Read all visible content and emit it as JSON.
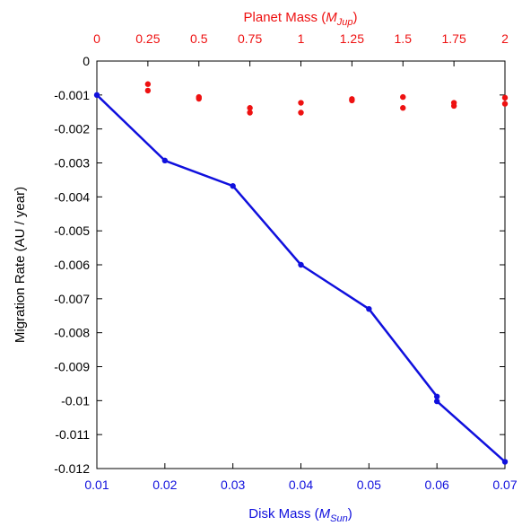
{
  "chart_data": {
    "type": "scatter",
    "bottom_axis": {
      "label_text": "Disk Mass (",
      "label_symbol": "M",
      "label_sub": "Sun",
      "label_close": ")",
      "range": [
        0.01,
        0.07
      ],
      "ticks": [
        "0.01",
        "0.02",
        "0.03",
        "0.04",
        "0.05",
        "0.06",
        "0.07"
      ],
      "color": "#1010dd"
    },
    "top_axis": {
      "label_text": "Planet Mass (",
      "label_symbol": "M",
      "label_sub": "Jup",
      "label_close": ")",
      "range": [
        0,
        2
      ],
      "ticks": [
        "0",
        "0.25",
        "0.5",
        "0.75",
        "1",
        "1.25",
        "1.5",
        "1.75",
        "2"
      ],
      "color": "#ee1111"
    },
    "left_axis": {
      "label": "Migration Rate (AU / year)",
      "range": [
        -0.012,
        0
      ],
      "ticks": [
        "0",
        "-0.001",
        "-0.002",
        "-0.003",
        "-0.004",
        "-0.005",
        "-0.006",
        "-0.007",
        "-0.008",
        "-0.009",
        "-0.01",
        "-0.011",
        "-0.012"
      ],
      "color": "#000000"
    },
    "grid": false,
    "series": [
      {
        "axis": "bottom",
        "style": "line+markers",
        "color": "#1010dd",
        "x": [
          0.01,
          0.02,
          0.03,
          0.04,
          0.05,
          0.06,
          0.06,
          0.07
        ],
        "y": [
          -0.001,
          -0.00293,
          -0.00368,
          -0.006,
          -0.0073,
          -0.00988,
          -0.01002,
          -0.0118
        ]
      },
      {
        "axis": "top",
        "style": "markers",
        "color": "#ee1111",
        "x": [
          0.25,
          0.25,
          0.5,
          0.5,
          0.75,
          0.75,
          1.0,
          1.0,
          1.25,
          1.25,
          1.5,
          1.5,
          1.75,
          1.75,
          2.0,
          2.0
        ],
        "y": [
          -0.00068,
          -0.00087,
          -0.00106,
          -0.00111,
          -0.00138,
          -0.00152,
          -0.00123,
          -0.00152,
          -0.00112,
          -0.00116,
          -0.00106,
          -0.00138,
          -0.00123,
          -0.00132,
          -0.00108,
          -0.00126
        ]
      }
    ]
  }
}
